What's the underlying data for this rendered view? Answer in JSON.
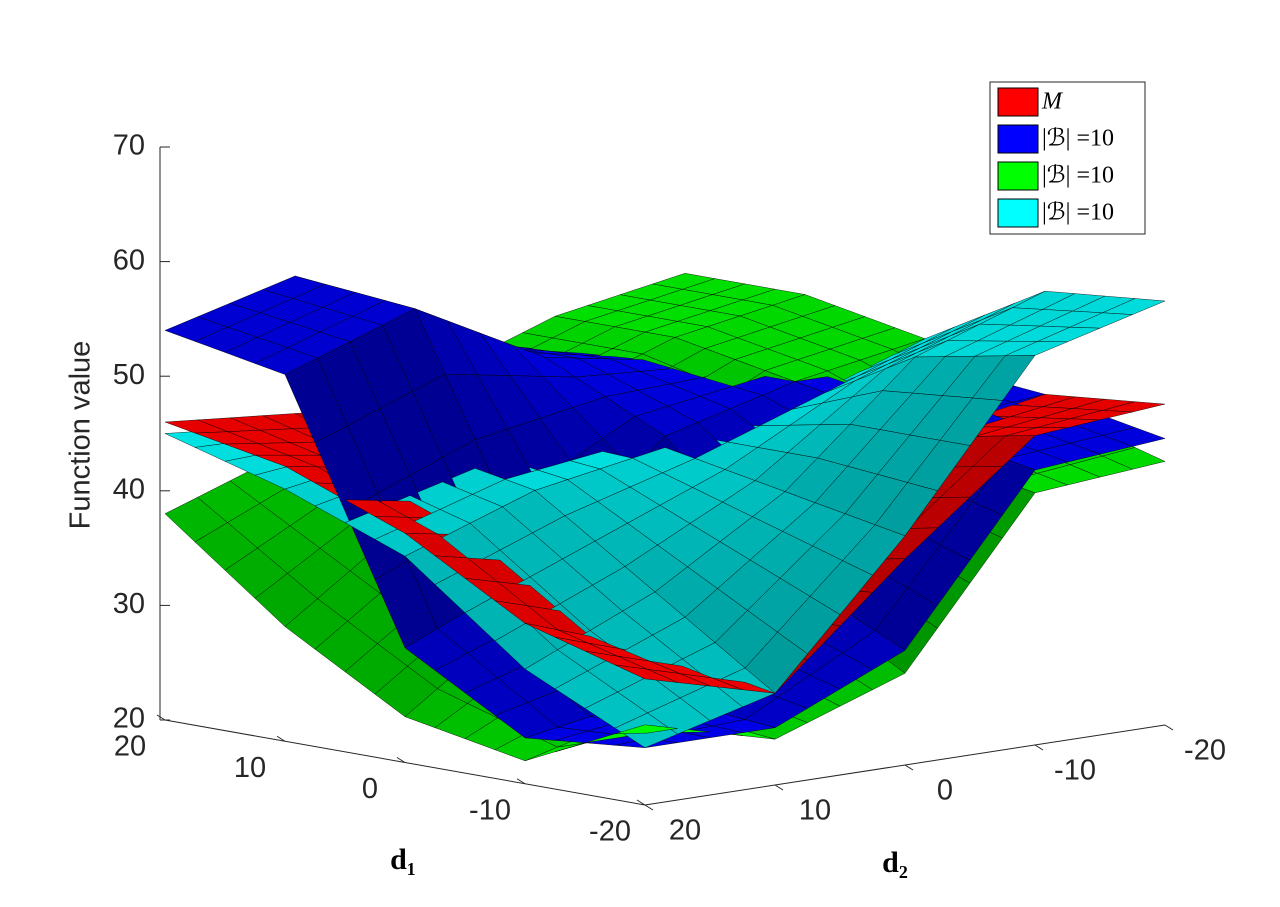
{
  "chart_data": {
    "type": "surface",
    "zlabel": "Function value",
    "xlabel": "d₁",
    "ylabel": "d₂",
    "x": [
      -20,
      -10,
      0,
      10,
      20
    ],
    "y": [
      -20,
      -10,
      0,
      10,
      20
    ],
    "xlim": [
      -20,
      20
    ],
    "ylim": [
      -20,
      20
    ],
    "zlim": [
      20,
      70
    ],
    "xticks": [
      -20,
      -10,
      0,
      10,
      20
    ],
    "yticks": [
      -20,
      -10,
      0,
      10,
      20
    ],
    "zticks": [
      20,
      30,
      40,
      50,
      60,
      70
    ],
    "legend": "upper right",
    "series": [
      {
        "name": "M",
        "color": "#ff0000",
        "values": [
          [
            48,
            47,
            38,
            28,
            31
          ],
          [
            47,
            45,
            36,
            30,
            34
          ],
          [
            46,
            44,
            40,
            38,
            40
          ],
          [
            45,
            44,
            42,
            42,
            44
          ],
          [
            45,
            45,
            44,
            45,
            46
          ]
        ]
      },
      {
        "name": "|ℬ| =10",
        "color": "#0000ff",
        "values": [
          [
            45,
            44,
            30,
            25,
            25
          ],
          [
            47,
            46,
            35,
            26,
            24
          ],
          [
            48,
            48,
            45,
            35,
            30
          ],
          [
            47,
            48,
            50,
            56,
            52
          ],
          [
            46,
            47,
            50,
            57,
            54
          ]
        ]
      },
      {
        "name": "|ℬ| =10",
        "color": "#00ff00",
        "values": [
          [
            43,
            42,
            28,
            24,
            27
          ],
          [
            46,
            44,
            34,
            25,
            22
          ],
          [
            50,
            48,
            42,
            32,
            24
          ],
          [
            52,
            50,
            46,
            38,
            30
          ],
          [
            52,
            50,
            46,
            42,
            38
          ]
        ]
      },
      {
        "name": "|ℬ| =10",
        "color": "#00ffff",
        "values": [
          [
            57,
            54,
            40,
            28,
            25
          ],
          [
            56,
            52,
            42,
            35,
            30
          ],
          [
            50,
            46,
            44,
            42,
            38
          ],
          [
            42,
            42,
            44,
            44,
            42
          ],
          [
            37,
            40,
            42,
            44,
            45
          ]
        ]
      }
    ]
  }
}
